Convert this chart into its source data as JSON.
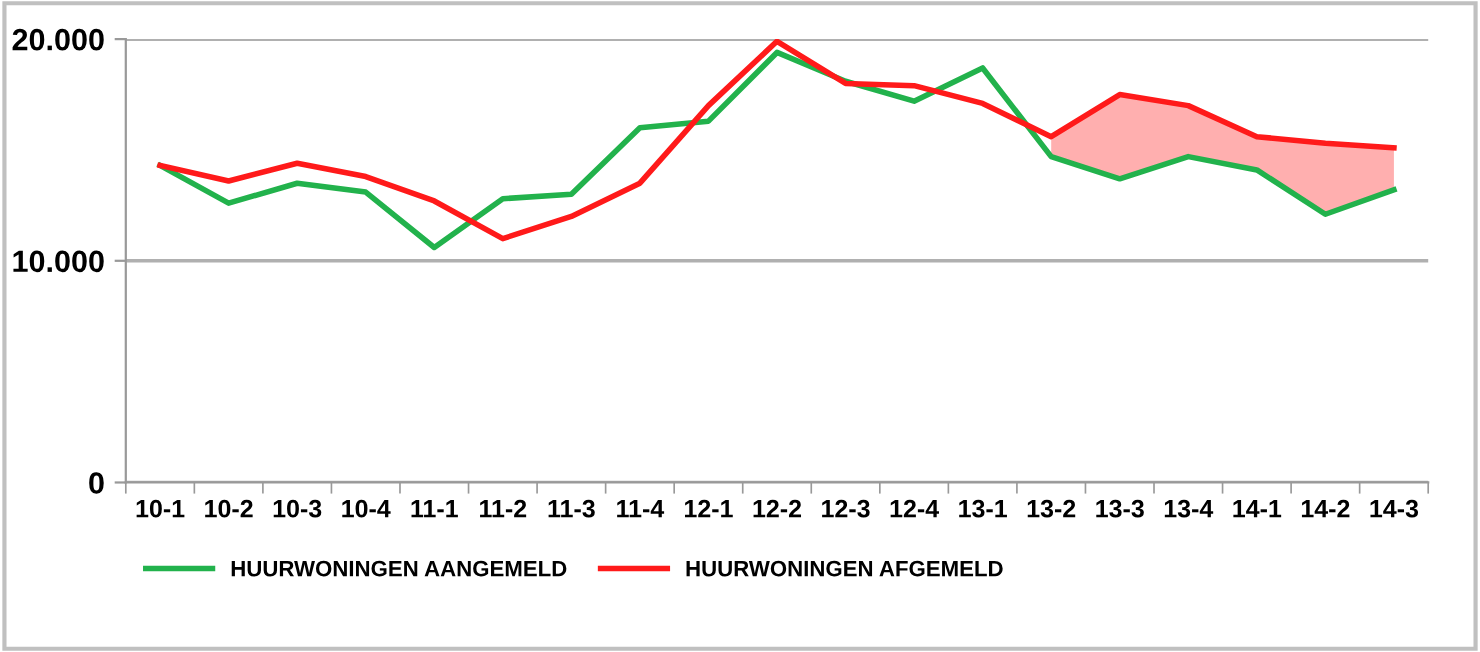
{
  "chart_data": {
    "type": "line",
    "categories": [
      "10-1",
      "10-2",
      "10-3",
      "10-4",
      "11-1",
      "11-2",
      "11-3",
      "11-4",
      "12-1",
      "12-2",
      "12-3",
      "12-4",
      "13-1",
      "13-2",
      "13-3",
      "13-4",
      "14-1",
      "14-2",
      "14-3"
    ],
    "series": [
      {
        "name": "HUURWONINGEN AANGEMELD",
        "color": "#22b24c",
        "values": [
          14300,
          12600,
          13500,
          13100,
          10600,
          12800,
          13000,
          16000,
          16300,
          19400,
          18100,
          17200,
          18700,
          14700,
          13700,
          14700,
          14100,
          12100,
          13200
        ]
      },
      {
        "name": "HUURWONINGEN AFGEMELD",
        "color": "#ff1a1a",
        "values": [
          14300,
          13600,
          14400,
          13800,
          12700,
          11000,
          12000,
          13500,
          17000,
          19900,
          18000,
          17900,
          17100,
          15600,
          17500,
          17000,
          15600,
          15300,
          15100
        ],
        "lower": [
          null,
          null,
          null,
          null,
          null,
          null,
          null,
          null,
          null,
          null,
          null,
          null,
          null,
          14700,
          13700,
          14700,
          14100,
          12100,
          13200
        ],
        "upper": [
          null,
          null,
          null,
          null,
          null,
          null,
          null,
          null,
          null,
          null,
          null,
          null,
          null,
          15600,
          17500,
          17000,
          15600,
          15300,
          15100
        ]
      }
    ],
    "ylim": [
      0,
      20000
    ],
    "yticks": [
      {
        "value": 0,
        "label": "0"
      },
      {
        "value": 10000,
        "label": "10.000"
      },
      {
        "value": 20000,
        "label": "20.000"
      }
    ],
    "grid": "y",
    "legend": "bottom left"
  }
}
